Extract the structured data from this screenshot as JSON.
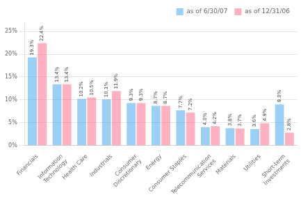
{
  "chart_data": {
    "type": "bar",
    "categories": [
      "Financials",
      "Information\nTechnology",
      "Health Care",
      "Industrials",
      "Consumer\nDiscretionary",
      "Energy",
      "Consumer Staples",
      "Telecommunication\nServices",
      "Materials",
      "Utilities",
      "Short-term\nInvestments"
    ],
    "series": [
      {
        "name": "as of 6/30/07",
        "values": [
          19.3,
          13.4,
          10.2,
          10.1,
          9.3,
          8.7,
          7.7,
          4.0,
          3.8,
          3.6,
          9.0
        ],
        "value_labels": [
          "19.3%",
          "13.4%",
          "10.2%",
          "10.1%",
          "9.3%",
          "8.7%",
          "7.7%",
          "4.0%",
          "3.8%",
          "3.6%",
          "9.0%"
        ]
      },
      {
        "name": "as of 12/31/06",
        "values": [
          22.4,
          13.4,
          10.5,
          11.9,
          9.3,
          8.7,
          7.2,
          4.2,
          3.7,
          4.9,
          2.8
        ],
        "value_labels": [
          "22.4%",
          "13.4%",
          "10.5%",
          "11.9%",
          "9.3%",
          "8.7%",
          "7.2%",
          "4.2%",
          "3.7%",
          "4.9%",
          "2.8%"
        ]
      }
    ],
    "ylim": [
      0,
      27
    ],
    "yticks": [
      {
        "value": 0,
        "label": "0%"
      },
      {
        "value": 5,
        "label": "5%"
      },
      {
        "value": 10,
        "label": "10%"
      },
      {
        "value": 15,
        "label": "15%"
      },
      {
        "value": 20,
        "label": "20%"
      },
      {
        "value": 25,
        "label": "25%"
      }
    ],
    "grid": true,
    "legend": "upper right",
    "data_labels": true
  }
}
